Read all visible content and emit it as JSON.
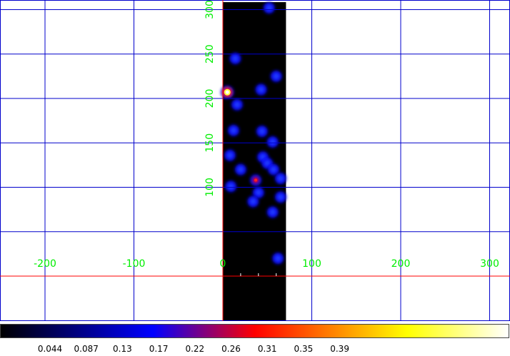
{
  "chart_data": {
    "type": "heatmap",
    "x_ticks": [
      "-200",
      "-100",
      "0",
      "100",
      "200",
      "300"
    ],
    "y_ticks": [
      "100",
      "150",
      "200",
      "250",
      "300",
      "350"
    ],
    "xlim": [
      -250,
      325
    ],
    "ylim": [
      0,
      362
    ],
    "image_extent": {
      "x": [
        0,
        71
      ],
      "y": [
        0,
        362
      ]
    },
    "grid": true,
    "grid_color": "#0000cc",
    "axis_line_color": "#ff0000",
    "tick_label_color": "#00ee00",
    "colormap": "heat",
    "colorbar": {
      "range": [
        0,
        0.43
      ],
      "tick_labels": [
        "0.044",
        "0.087",
        "0.13",
        "0.17",
        "0.22",
        "0.26",
        "0.31",
        "0.35",
        "0.39"
      ]
    },
    "sources": [
      {
        "x": 5,
        "y": 207,
        "value": 0.43
      },
      {
        "x": 37,
        "y": 108,
        "value": 0.22
      },
      {
        "x": 52,
        "y": 302,
        "value": 0.1
      },
      {
        "x": 14,
        "y": 245,
        "value": 0.09
      },
      {
        "x": 60,
        "y": 225,
        "value": 0.09
      },
      {
        "x": 43,
        "y": 210,
        "value": 0.08
      },
      {
        "x": 16,
        "y": 193,
        "value": 0.08
      },
      {
        "x": 12,
        "y": 164,
        "value": 0.09
      },
      {
        "x": 44,
        "y": 163,
        "value": 0.09
      },
      {
        "x": 56,
        "y": 151,
        "value": 0.08
      },
      {
        "x": 8,
        "y": 136,
        "value": 0.08
      },
      {
        "x": 45,
        "y": 134,
        "value": 0.08
      },
      {
        "x": 50,
        "y": 127,
        "value": 0.07
      },
      {
        "x": 20,
        "y": 120,
        "value": 0.08
      },
      {
        "x": 57,
        "y": 120,
        "value": 0.08
      },
      {
        "x": 65,
        "y": 110,
        "value": 0.08
      },
      {
        "x": 9,
        "y": 101,
        "value": 0.08
      },
      {
        "x": 40,
        "y": 94,
        "value": 0.08
      },
      {
        "x": 65,
        "y": 89,
        "value": 0.08
      },
      {
        "x": 34,
        "y": 84,
        "value": 0.08
      },
      {
        "x": 56,
        "y": 72,
        "value": 0.08
      },
      {
        "x": 62,
        "y": 20,
        "value": 0.08
      }
    ]
  }
}
